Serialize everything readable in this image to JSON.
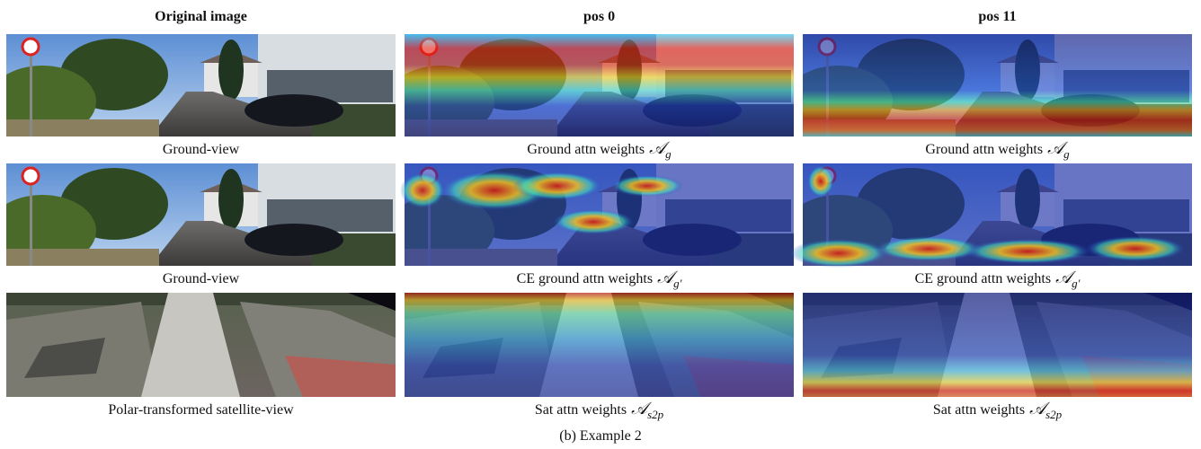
{
  "columns": [
    "Original image",
    "pos 0",
    "pos 11"
  ],
  "rows": [
    {
      "captions": [
        {
          "text": "Ground-view"
        },
        {
          "text": "Ground attn weights",
          "symbol": "𝒜",
          "sub": "g"
        },
        {
          "text": "Ground attn weights",
          "symbol": "𝒜",
          "sub": "g"
        }
      ]
    },
    {
      "captions": [
        {
          "text": "Ground-view"
        },
        {
          "text": "CE ground attn weights",
          "symbol": "𝒜",
          "sub": "g′"
        },
        {
          "text": "CE ground attn weights",
          "symbol": "𝒜",
          "sub": "g′"
        }
      ]
    },
    {
      "captions": [
        {
          "text": "Polar-transformed satellite-view"
        },
        {
          "text": "Sat attn weights",
          "symbol": "𝒜",
          "sub": "s2p"
        },
        {
          "text": "Sat attn weights",
          "symbol": "𝒜",
          "sub": "s2p"
        }
      ]
    }
  ],
  "caption": "(b) Example 2"
}
